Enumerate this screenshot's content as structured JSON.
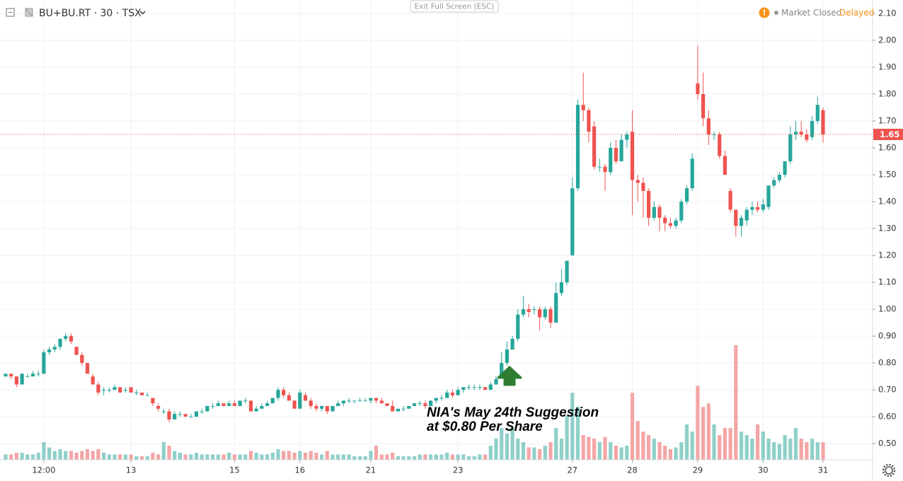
{
  "chart_data": {
    "type": "candlestick",
    "title": "BU+BU.RT · 30 · TSX",
    "exit_button": "Exit Full Screen (ESC)",
    "status": "Market Closed",
    "delay": "Delayed",
    "annotation": [
      "NIA's May 24th Suggestion",
      "at $0.80 Per Share"
    ],
    "up_color": "#26a69a",
    "down_color": "#ef5350",
    "up_volume_color": "#8fd0c9",
    "down_volume_color": "#f3a6a5",
    "grid": true,
    "ylim": [
      0.44,
      2.15
    ],
    "yticks": [
      {
        "value": 0.5,
        "label": "0.50"
      },
      {
        "value": 0.6,
        "label": "0.60"
      },
      {
        "value": 0.7,
        "label": "0.70"
      },
      {
        "value": 0.8,
        "label": "0.80"
      },
      {
        "value": 0.9,
        "label": "0.90"
      },
      {
        "value": 1.0,
        "label": "1.00"
      },
      {
        "value": 1.1,
        "label": "1.10"
      },
      {
        "value": 1.2,
        "label": "1.20"
      },
      {
        "value": 1.3,
        "label": "1.30"
      },
      {
        "value": 1.4,
        "label": "1.40"
      },
      {
        "value": 1.5,
        "label": "1.50"
      },
      {
        "value": 1.6,
        "label": "1.60"
      },
      {
        "value": 1.7,
        "label": "1.70"
      },
      {
        "value": 1.8,
        "label": "1.80"
      },
      {
        "value": 1.9,
        "label": "1.90"
      },
      {
        "value": 2.0,
        "label": "2.00"
      },
      {
        "value": 2.1,
        "label": "2.10"
      }
    ],
    "last_price": {
      "value": 1.65,
      "label": "1.65"
    },
    "categories": [
      null,
      null,
      null,
      null,
      null,
      null,
      null,
      "12:00",
      null,
      null,
      null,
      null,
      null,
      null,
      null,
      null,
      null,
      null,
      null,
      null,
      null,
      null,
      null,
      "13",
      null,
      null,
      null,
      null,
      null,
      null,
      null,
      null,
      null,
      null,
      null,
      null,
      null,
      null,
      null,
      null,
      null,
      null,
      "15",
      null,
      null,
      null,
      null,
      null,
      null,
      null,
      null,
      null,
      null,
      null,
      "16",
      null,
      null,
      null,
      null,
      null,
      null,
      null,
      null,
      null,
      null,
      null,
      null,
      "21",
      null,
      null,
      null,
      null,
      null,
      null,
      null,
      null,
      null,
      null,
      null,
      null,
      null,
      null,
      null,
      "23",
      null,
      null,
      null,
      null,
      null,
      null,
      null,
      null,
      null,
      null,
      null,
      null,
      null,
      null,
      null,
      null,
      null,
      null,
      null,
      null,
      "27",
      null,
      null,
      null,
      null,
      null,
      null,
      null,
      null,
      null,
      null,
      "28",
      null,
      null,
      null,
      null,
      null,
      null,
      null,
      null,
      null,
      null,
      null,
      "29",
      null,
      null,
      null,
      null,
      null,
      null,
      null,
      null,
      null,
      null,
      null,
      "30",
      null,
      null,
      null,
      null,
      null,
      null,
      null,
      null,
      null,
      null,
      "31"
    ],
    "open": [
      0.75,
      0.76,
      0.75,
      0.72,
      0.75,
      0.75,
      0.76,
      0.76,
      0.84,
      0.85,
      0.86,
      0.89,
      0.9,
      0.86,
      0.83,
      0.8,
      0.75,
      0.72,
      0.7,
      0.7,
      0.7,
      0.71,
      0.7,
      0.71,
      0.69,
      0.69,
      0.68,
      0.67,
      0.64,
      0.62,
      0.62,
      0.59,
      0.61,
      0.61,
      0.6,
      0.6,
      0.62,
      0.62,
      0.64,
      0.64,
      0.65,
      0.64,
      0.65,
      0.64,
      0.66,
      0.66,
      0.62,
      0.63,
      0.64,
      0.65,
      0.67,
      0.7,
      0.68,
      0.66,
      0.63,
      0.68,
      0.66,
      0.64,
      0.63,
      0.64,
      0.62,
      0.64,
      0.65,
      0.66,
      0.66,
      0.66,
      0.66,
      0.66,
      0.67,
      0.66,
      0.65,
      0.64,
      0.62,
      0.63,
      0.63,
      0.64,
      0.65,
      0.65,
      0.64,
      0.66,
      0.67,
      0.67,
      0.69,
      0.68,
      0.7,
      0.71,
      0.71,
      0.71,
      0.71,
      0.7,
      0.72,
      0.75,
      0.8,
      0.85,
      0.89,
      0.98,
      1.0,
      1.0,
      1.0,
      0.97,
      1.0,
      0.95,
      1.06,
      1.1,
      1.2,
      1.45,
      1.76,
      1.74,
      1.68,
      1.53,
      1.53,
      1.51,
      1.6,
      1.55,
      1.63,
      1.66,
      1.48,
      1.47,
      1.44,
      1.34,
      1.38,
      1.34,
      1.32,
      1.31,
      1.33,
      1.4,
      1.45,
      1.84,
      1.8,
      1.71,
      1.65,
      1.65,
      1.57,
      1.44,
      1.37,
      1.31,
      1.33,
      1.37,
      1.38,
      1.37,
      1.38,
      1.46,
      1.48,
      1.5,
      1.55,
      1.65,
      1.66,
      1.65,
      1.64,
      1.7,
      1.74
    ],
    "high": [
      0.76,
      0.76,
      0.75,
      0.76,
      0.76,
      0.77,
      0.77,
      0.85,
      0.86,
      0.87,
      0.89,
      0.91,
      0.91,
      0.86,
      0.84,
      0.8,
      0.76,
      0.73,
      0.71,
      0.71,
      0.72,
      0.71,
      0.71,
      0.71,
      0.7,
      0.69,
      0.69,
      0.67,
      0.65,
      0.63,
      0.63,
      0.62,
      0.62,
      0.61,
      0.61,
      0.62,
      0.63,
      0.64,
      0.65,
      0.66,
      0.65,
      0.66,
      0.66,
      0.66,
      0.67,
      0.66,
      0.64,
      0.65,
      0.66,
      0.67,
      0.71,
      0.71,
      0.69,
      0.66,
      0.7,
      0.69,
      0.67,
      0.65,
      0.64,
      0.64,
      0.64,
      0.66,
      0.66,
      0.67,
      0.66,
      0.67,
      0.67,
      0.67,
      0.67,
      0.67,
      0.65,
      0.66,
      0.63,
      0.64,
      0.64,
      0.65,
      0.66,
      0.66,
      0.66,
      0.67,
      0.68,
      0.7,
      0.7,
      0.71,
      0.71,
      0.72,
      0.72,
      0.72,
      0.71,
      0.73,
      0.75,
      0.84,
      0.88,
      0.9,
      1.0,
      1.05,
      1.02,
      1.01,
      1.01,
      1.01,
      1.01,
      1.1,
      1.15,
      1.18,
      1.49,
      1.78,
      1.88,
      1.75,
      1.7,
      1.56,
      1.54,
      1.62,
      1.63,
      1.65,
      1.66,
      1.74,
      1.5,
      1.49,
      1.45,
      1.4,
      1.39,
      1.35,
      1.34,
      1.34,
      1.41,
      1.46,
      1.58,
      1.98,
      1.88,
      1.74,
      1.66,
      1.66,
      1.59,
      1.45,
      1.37,
      1.35,
      1.38,
      1.4,
      1.4,
      1.41,
      1.46,
      1.49,
      1.51,
      1.55,
      1.68,
      1.7,
      1.7,
      1.67,
      1.72,
      1.79,
      1.75
    ],
    "low": [
      0.75,
      0.74,
      0.71,
      0.72,
      0.75,
      0.75,
      0.75,
      0.76,
      0.83,
      0.84,
      0.85,
      0.88,
      0.87,
      0.83,
      0.79,
      0.76,
      0.72,
      0.68,
      0.68,
      0.69,
      0.7,
      0.69,
      0.69,
      0.69,
      0.68,
      0.68,
      0.68,
      0.64,
      0.62,
      0.61,
      0.58,
      0.59,
      0.6,
      0.6,
      0.6,
      0.6,
      0.61,
      0.62,
      0.63,
      0.64,
      0.64,
      0.64,
      0.64,
      0.64,
      0.65,
      0.62,
      0.62,
      0.63,
      0.64,
      0.65,
      0.66,
      0.67,
      0.66,
      0.63,
      0.63,
      0.66,
      0.63,
      0.62,
      0.62,
      0.61,
      0.62,
      0.64,
      0.64,
      0.65,
      0.65,
      0.66,
      0.66,
      0.65,
      0.65,
      0.65,
      0.64,
      0.62,
      0.62,
      0.62,
      0.63,
      0.64,
      0.64,
      0.63,
      0.64,
      0.65,
      0.66,
      0.67,
      0.67,
      0.68,
      0.69,
      0.7,
      0.7,
      0.7,
      0.7,
      0.7,
      0.72,
      0.75,
      0.79,
      0.85,
      0.88,
      0.97,
      0.97,
      0.98,
      0.92,
      0.96,
      0.93,
      0.95,
      1.05,
      1.09,
      1.2,
      1.44,
      1.7,
      1.62,
      1.52,
      1.51,
      1.44,
      1.5,
      1.54,
      1.55,
      1.6,
      1.35,
      1.4,
      1.34,
      1.31,
      1.33,
      1.29,
      1.29,
      1.3,
      1.3,
      1.32,
      1.39,
      1.44,
      1.78,
      1.68,
      1.61,
      1.63,
      1.56,
      1.5,
      1.36,
      1.27,
      1.27,
      1.31,
      1.35,
      1.36,
      1.36,
      1.37,
      1.45,
      1.47,
      1.49,
      1.54,
      1.63,
      1.64,
      1.62,
      1.63,
      1.69,
      1.62
    ],
    "close": [
      0.76,
      0.75,
      0.72,
      0.76,
      0.75,
      0.76,
      0.76,
      0.84,
      0.85,
      0.86,
      0.89,
      0.9,
      0.88,
      0.83,
      0.8,
      0.76,
      0.72,
      0.69,
      0.7,
      0.7,
      0.71,
      0.69,
      0.7,
      0.69,
      0.69,
      0.68,
      0.68,
      0.65,
      0.63,
      0.62,
      0.59,
      0.61,
      0.61,
      0.6,
      0.6,
      0.62,
      0.62,
      0.64,
      0.64,
      0.65,
      0.64,
      0.65,
      0.64,
      0.66,
      0.66,
      0.62,
      0.63,
      0.64,
      0.65,
      0.67,
      0.7,
      0.68,
      0.66,
      0.63,
      0.69,
      0.66,
      0.64,
      0.63,
      0.64,
      0.62,
      0.64,
      0.65,
      0.66,
      0.66,
      0.66,
      0.66,
      0.66,
      0.67,
      0.66,
      0.65,
      0.64,
      0.62,
      0.63,
      0.63,
      0.64,
      0.65,
      0.65,
      0.64,
      0.66,
      0.67,
      0.67,
      0.69,
      0.68,
      0.7,
      0.71,
      0.71,
      0.71,
      0.71,
      0.7,
      0.72,
      0.74,
      0.8,
      0.85,
      0.89,
      0.98,
      1.0,
      0.99,
      1.0,
      0.97,
      1.0,
      0.95,
      1.06,
      1.1,
      1.18,
      1.45,
      1.76,
      1.74,
      1.66,
      1.53,
      1.53,
      1.51,
      1.6,
      1.55,
      1.63,
      1.65,
      1.48,
      1.47,
      1.44,
      1.34,
      1.38,
      1.34,
      1.32,
      1.31,
      1.33,
      1.4,
      1.45,
      1.56,
      1.8,
      1.71,
      1.65,
      1.65,
      1.57,
      1.5,
      1.37,
      1.31,
      1.34,
      1.37,
      1.38,
      1.37,
      1.39,
      1.46,
      1.48,
      1.5,
      1.55,
      1.65,
      1.66,
      1.65,
      1.63,
      1.7,
      1.76,
      1.65
    ],
    "volume": [
      3,
      3,
      4,
      4,
      3,
      3,
      4,
      10,
      7,
      5,
      6,
      5,
      5,
      4,
      5,
      6,
      5,
      6,
      4,
      3,
      3,
      3,
      3,
      3,
      2,
      2,
      2,
      4,
      3,
      10,
      8,
      5,
      4,
      3,
      3,
      4,
      3,
      3,
      3,
      3,
      3,
      4,
      3,
      3,
      3,
      5,
      4,
      3,
      3,
      4,
      6,
      5,
      5,
      4,
      5,
      4,
      5,
      4,
      3,
      5,
      3,
      3,
      3,
      3,
      2,
      2,
      2,
      5,
      8,
      3,
      3,
      4,
      2,
      2,
      2,
      2,
      3,
      3,
      3,
      3,
      3,
      4,
      3,
      3,
      3,
      2,
      2,
      3,
      3,
      8,
      12,
      18,
      15,
      18,
      12,
      10,
      7,
      7,
      6,
      8,
      10,
      18,
      12,
      25,
      38,
      30,
      14,
      13,
      12,
      10,
      13,
      10,
      8,
      7,
      8,
      38,
      22,
      16,
      14,
      12,
      10,
      8,
      6,
      7,
      10,
      20,
      16,
      42,
      30,
      32,
      20,
      14,
      18,
      18,
      65,
      16,
      14,
      12,
      20,
      16,
      12,
      10,
      9,
      14,
      12,
      18,
      12,
      10,
      12,
      10,
      10
    ]
  }
}
